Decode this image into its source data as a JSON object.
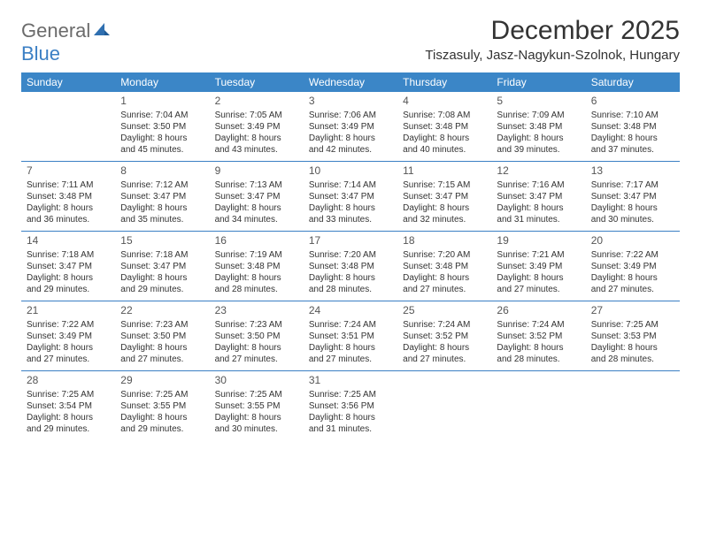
{
  "logo": {
    "general": "General",
    "blue": "Blue",
    "icon_color": "#2f6fb0"
  },
  "header": {
    "month_title": "December 2025",
    "location": "Tiszasuly, Jasz-Nagykun-Szolnok, Hungary"
  },
  "colors": {
    "weekday_bg": "#3b86c7",
    "weekday_text": "#ffffff",
    "divider": "#3b7fc4",
    "text": "#333333"
  },
  "weekdays": [
    "Sunday",
    "Monday",
    "Tuesday",
    "Wednesday",
    "Thursday",
    "Friday",
    "Saturday"
  ],
  "weeks": [
    [
      {
        "num": "",
        "lines": []
      },
      {
        "num": "1",
        "lines": [
          "Sunrise: 7:04 AM",
          "Sunset: 3:50 PM",
          "Daylight: 8 hours",
          "and 45 minutes."
        ]
      },
      {
        "num": "2",
        "lines": [
          "Sunrise: 7:05 AM",
          "Sunset: 3:49 PM",
          "Daylight: 8 hours",
          "and 43 minutes."
        ]
      },
      {
        "num": "3",
        "lines": [
          "Sunrise: 7:06 AM",
          "Sunset: 3:49 PM",
          "Daylight: 8 hours",
          "and 42 minutes."
        ]
      },
      {
        "num": "4",
        "lines": [
          "Sunrise: 7:08 AM",
          "Sunset: 3:48 PM",
          "Daylight: 8 hours",
          "and 40 minutes."
        ]
      },
      {
        "num": "5",
        "lines": [
          "Sunrise: 7:09 AM",
          "Sunset: 3:48 PM",
          "Daylight: 8 hours",
          "and 39 minutes."
        ]
      },
      {
        "num": "6",
        "lines": [
          "Sunrise: 7:10 AM",
          "Sunset: 3:48 PM",
          "Daylight: 8 hours",
          "and 37 minutes."
        ]
      }
    ],
    [
      {
        "num": "7",
        "lines": [
          "Sunrise: 7:11 AM",
          "Sunset: 3:48 PM",
          "Daylight: 8 hours",
          "and 36 minutes."
        ]
      },
      {
        "num": "8",
        "lines": [
          "Sunrise: 7:12 AM",
          "Sunset: 3:47 PM",
          "Daylight: 8 hours",
          "and 35 minutes."
        ]
      },
      {
        "num": "9",
        "lines": [
          "Sunrise: 7:13 AM",
          "Sunset: 3:47 PM",
          "Daylight: 8 hours",
          "and 34 minutes."
        ]
      },
      {
        "num": "10",
        "lines": [
          "Sunrise: 7:14 AM",
          "Sunset: 3:47 PM",
          "Daylight: 8 hours",
          "and 33 minutes."
        ]
      },
      {
        "num": "11",
        "lines": [
          "Sunrise: 7:15 AM",
          "Sunset: 3:47 PM",
          "Daylight: 8 hours",
          "and 32 minutes."
        ]
      },
      {
        "num": "12",
        "lines": [
          "Sunrise: 7:16 AM",
          "Sunset: 3:47 PM",
          "Daylight: 8 hours",
          "and 31 minutes."
        ]
      },
      {
        "num": "13",
        "lines": [
          "Sunrise: 7:17 AM",
          "Sunset: 3:47 PM",
          "Daylight: 8 hours",
          "and 30 minutes."
        ]
      }
    ],
    [
      {
        "num": "14",
        "lines": [
          "Sunrise: 7:18 AM",
          "Sunset: 3:47 PM",
          "Daylight: 8 hours",
          "and 29 minutes."
        ]
      },
      {
        "num": "15",
        "lines": [
          "Sunrise: 7:18 AM",
          "Sunset: 3:47 PM",
          "Daylight: 8 hours",
          "and 29 minutes."
        ]
      },
      {
        "num": "16",
        "lines": [
          "Sunrise: 7:19 AM",
          "Sunset: 3:48 PM",
          "Daylight: 8 hours",
          "and 28 minutes."
        ]
      },
      {
        "num": "17",
        "lines": [
          "Sunrise: 7:20 AM",
          "Sunset: 3:48 PM",
          "Daylight: 8 hours",
          "and 28 minutes."
        ]
      },
      {
        "num": "18",
        "lines": [
          "Sunrise: 7:20 AM",
          "Sunset: 3:48 PM",
          "Daylight: 8 hours",
          "and 27 minutes."
        ]
      },
      {
        "num": "19",
        "lines": [
          "Sunrise: 7:21 AM",
          "Sunset: 3:49 PM",
          "Daylight: 8 hours",
          "and 27 minutes."
        ]
      },
      {
        "num": "20",
        "lines": [
          "Sunrise: 7:22 AM",
          "Sunset: 3:49 PM",
          "Daylight: 8 hours",
          "and 27 minutes."
        ]
      }
    ],
    [
      {
        "num": "21",
        "lines": [
          "Sunrise: 7:22 AM",
          "Sunset: 3:49 PM",
          "Daylight: 8 hours",
          "and 27 minutes."
        ]
      },
      {
        "num": "22",
        "lines": [
          "Sunrise: 7:23 AM",
          "Sunset: 3:50 PM",
          "Daylight: 8 hours",
          "and 27 minutes."
        ]
      },
      {
        "num": "23",
        "lines": [
          "Sunrise: 7:23 AM",
          "Sunset: 3:50 PM",
          "Daylight: 8 hours",
          "and 27 minutes."
        ]
      },
      {
        "num": "24",
        "lines": [
          "Sunrise: 7:24 AM",
          "Sunset: 3:51 PM",
          "Daylight: 8 hours",
          "and 27 minutes."
        ]
      },
      {
        "num": "25",
        "lines": [
          "Sunrise: 7:24 AM",
          "Sunset: 3:52 PM",
          "Daylight: 8 hours",
          "and 27 minutes."
        ]
      },
      {
        "num": "26",
        "lines": [
          "Sunrise: 7:24 AM",
          "Sunset: 3:52 PM",
          "Daylight: 8 hours",
          "and 28 minutes."
        ]
      },
      {
        "num": "27",
        "lines": [
          "Sunrise: 7:25 AM",
          "Sunset: 3:53 PM",
          "Daylight: 8 hours",
          "and 28 minutes."
        ]
      }
    ],
    [
      {
        "num": "28",
        "lines": [
          "Sunrise: 7:25 AM",
          "Sunset: 3:54 PM",
          "Daylight: 8 hours",
          "and 29 minutes."
        ]
      },
      {
        "num": "29",
        "lines": [
          "Sunrise: 7:25 AM",
          "Sunset: 3:55 PM",
          "Daylight: 8 hours",
          "and 29 minutes."
        ]
      },
      {
        "num": "30",
        "lines": [
          "Sunrise: 7:25 AM",
          "Sunset: 3:55 PM",
          "Daylight: 8 hours",
          "and 30 minutes."
        ]
      },
      {
        "num": "31",
        "lines": [
          "Sunrise: 7:25 AM",
          "Sunset: 3:56 PM",
          "Daylight: 8 hours",
          "and 31 minutes."
        ]
      },
      {
        "num": "",
        "lines": []
      },
      {
        "num": "",
        "lines": []
      },
      {
        "num": "",
        "lines": []
      }
    ]
  ]
}
